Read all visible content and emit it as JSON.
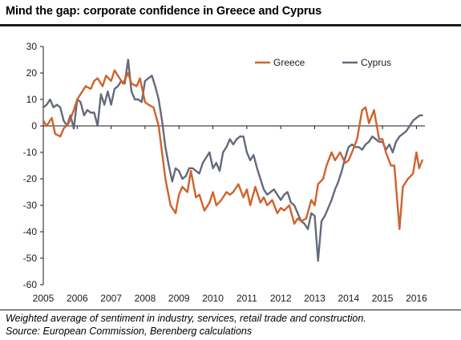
{
  "header": {
    "title": "Mind the gap: corporate confidence in Greece and Cyprus"
  },
  "footer": {
    "note": "Weighted average of sentiment in industry, services, retail trade and construction.",
    "source": "Source: European Commission, Berenberg calculations"
  },
  "colors": {
    "greece": "#d0622c",
    "cyprus": "#636a7c",
    "axis": "#1a1a1a"
  },
  "chart_data": {
    "type": "line",
    "title": "",
    "xlabel": "",
    "ylabel": "",
    "xlim": [
      2005.0,
      2016.25
    ],
    "ylim": [
      -60,
      30
    ],
    "yticks": [
      30,
      20,
      10,
      0,
      -10,
      -20,
      -30,
      -40,
      -50,
      -60
    ],
    "xticks": [
      2005,
      2006,
      2007,
      2008,
      2009,
      2010,
      2011,
      2012,
      2013,
      2014,
      2015,
      2016
    ],
    "grid": false,
    "legend": "top-right",
    "series": [
      {
        "name": "Greece",
        "x": [
          2005.0,
          2005.1,
          2005.25,
          2005.35,
          2005.5,
          2005.6,
          2005.75,
          2005.9,
          2006.0,
          2006.1,
          2006.25,
          2006.4,
          2006.5,
          2006.6,
          2006.75,
          2006.85,
          2007.0,
          2007.1,
          2007.25,
          2007.35,
          2007.5,
          2007.6,
          2007.75,
          2007.85,
          2008.0,
          2008.1,
          2008.25,
          2008.4,
          2008.5,
          2008.6,
          2008.75,
          2008.9,
          2009.0,
          2009.1,
          2009.25,
          2009.35,
          2009.5,
          2009.6,
          2009.75,
          2009.9,
          2010.0,
          2010.1,
          2010.25,
          2010.4,
          2010.5,
          2010.6,
          2010.75,
          2010.9,
          2011.0,
          2011.1,
          2011.25,
          2011.4,
          2011.5,
          2011.6,
          2011.75,
          2011.9,
          2012.0,
          2012.1,
          2012.25,
          2012.4,
          2012.5,
          2012.6,
          2012.75,
          2012.9,
          2013.0,
          2013.1,
          2013.25,
          2013.35,
          2013.5,
          2013.6,
          2013.75,
          2013.9,
          2014.0,
          2014.1,
          2014.25,
          2014.4,
          2014.5,
          2014.6,
          2014.75,
          2014.9,
          2015.0,
          2015.1,
          2015.25,
          2015.35,
          2015.5,
          2015.6,
          2015.75,
          2015.9,
          2016.0,
          2016.08,
          2016.17
        ],
        "values": [
          2,
          0,
          3,
          -3,
          -4,
          -1,
          1,
          6,
          10,
          12,
          15,
          14,
          17,
          18,
          15,
          19,
          17,
          21,
          18,
          16,
          20,
          16,
          15,
          18,
          9,
          8,
          7,
          0,
          -10,
          -20,
          -30,
          -33,
          -26,
          -23,
          -25,
          -17,
          -27,
          -26,
          -32,
          -29,
          -25,
          -30,
          -28,
          -25,
          -26,
          -25,
          -22,
          -27,
          -24,
          -30,
          -23,
          -29,
          -27,
          -30,
          -28,
          -33,
          -31,
          -32,
          -30,
          -37,
          -35,
          -36,
          -35,
          -28,
          -30,
          -22,
          -20,
          -15,
          -10,
          -13,
          -10,
          -14,
          -13,
          -10,
          -5,
          6,
          7,
          1,
          6,
          -5,
          -5,
          -10,
          -15,
          -15,
          -39,
          -23,
          -20,
          -18,
          -10,
          -16,
          -13
        ]
      },
      {
        "name": "Cyprus",
        "x": [
          2005.0,
          2005.1,
          2005.2,
          2005.3,
          2005.4,
          2005.5,
          2005.6,
          2005.7,
          2005.8,
          2005.9,
          2006.0,
          2006.1,
          2006.2,
          2006.3,
          2006.4,
          2006.5,
          2006.6,
          2006.7,
          2006.8,
          2006.9,
          2007.0,
          2007.1,
          2007.2,
          2007.3,
          2007.4,
          2007.5,
          2007.6,
          2007.7,
          2007.8,
          2007.9,
          2008.0,
          2008.1,
          2008.2,
          2008.3,
          2008.4,
          2008.5,
          2008.6,
          2008.7,
          2008.8,
          2008.9,
          2009.0,
          2009.1,
          2009.2,
          2009.3,
          2009.4,
          2009.5,
          2009.6,
          2009.7,
          2009.8,
          2009.9,
          2010.0,
          2010.1,
          2010.2,
          2010.3,
          2010.4,
          2010.5,
          2010.6,
          2010.7,
          2010.8,
          2010.9,
          2011.0,
          2011.1,
          2011.2,
          2011.3,
          2011.4,
          2011.5,
          2011.6,
          2011.7,
          2011.8,
          2011.9,
          2012.0,
          2012.1,
          2012.2,
          2012.3,
          2012.4,
          2012.5,
          2012.6,
          2012.7,
          2012.8,
          2012.9,
          2013.0,
          2013.1,
          2013.2,
          2013.3,
          2013.4,
          2013.5,
          2013.6,
          2013.7,
          2013.8,
          2013.9,
          2014.0,
          2014.1,
          2014.2,
          2014.3,
          2014.4,
          2014.5,
          2014.6,
          2014.7,
          2014.8,
          2014.9,
          2015.0,
          2015.1,
          2015.2,
          2015.3,
          2015.4,
          2015.5,
          2015.6,
          2015.7,
          2015.8,
          2015.9,
          2016.0,
          2016.1,
          2016.17
        ],
        "values": [
          7,
          8,
          10,
          7,
          8,
          7,
          2,
          0,
          4,
          -1,
          10,
          9,
          4,
          6,
          5,
          5,
          0,
          12,
          8,
          13,
          8,
          14,
          15,
          17,
          16,
          25,
          13,
          10,
          10,
          9,
          17,
          18,
          19,
          15,
          10,
          2,
          -8,
          -15,
          -21,
          -16,
          -17,
          -20,
          -19,
          -16,
          -16,
          -17,
          -18,
          -14,
          -12,
          -10,
          -16,
          -14,
          -17,
          -10,
          -8,
          -5,
          -7,
          -5,
          -4,
          -4,
          -10,
          -13,
          -11,
          -16,
          -20,
          -24,
          -26,
          -25,
          -24,
          -26,
          -28,
          -26,
          -25,
          -29,
          -30,
          -33,
          -36,
          -37,
          -39,
          -33,
          -34,
          -51,
          -36,
          -34,
          -31,
          -28,
          -24,
          -21,
          -17,
          -12,
          -8,
          -7,
          -8,
          -8,
          -9,
          -7,
          -6,
          -4,
          -5,
          -6,
          -6,
          -9,
          -7,
          -10,
          -6,
          -4,
          -3,
          -2,
          0,
          2,
          3,
          4,
          4
        ]
      }
    ]
  }
}
